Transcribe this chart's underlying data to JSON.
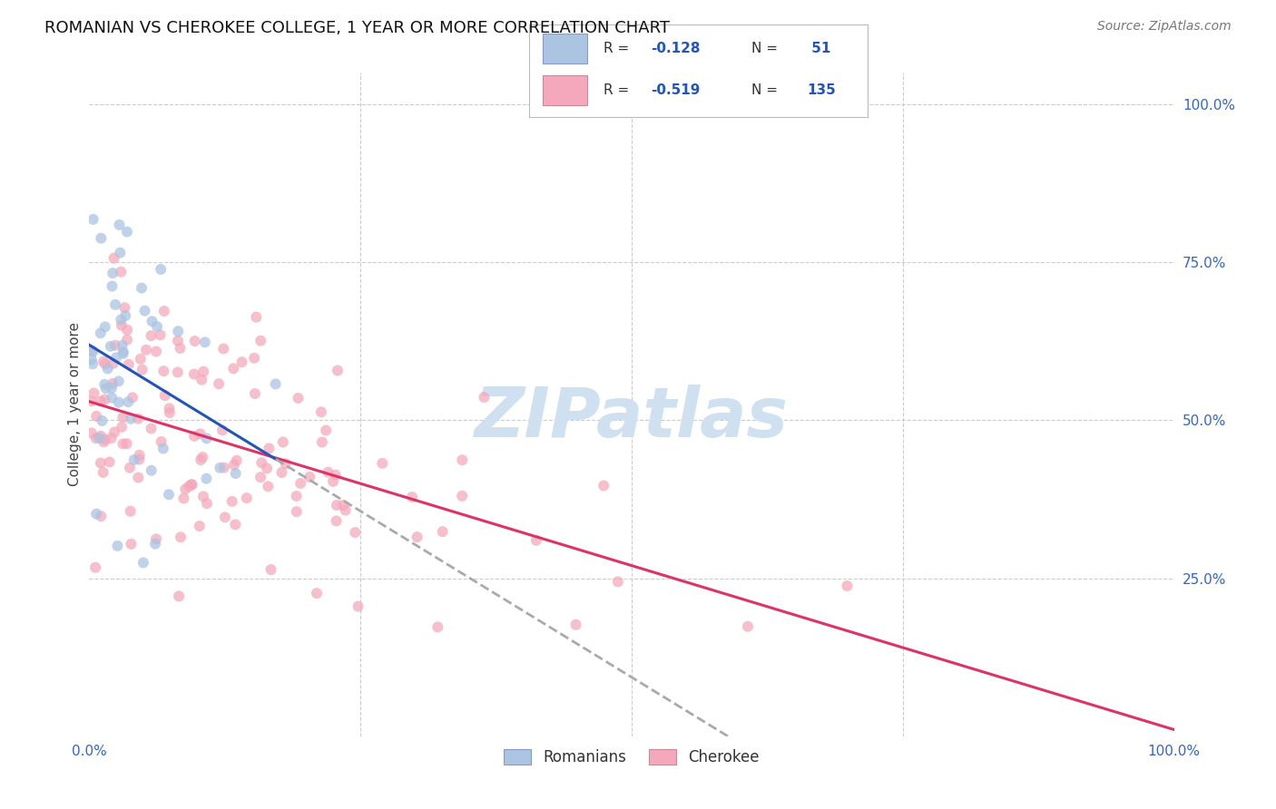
{
  "title": "ROMANIAN VS CHEROKEE COLLEGE, 1 YEAR OR MORE CORRELATION CHART",
  "source": "Source: ZipAtlas.com",
  "ylabel": "College, 1 year or more",
  "xlim": [
    0.0,
    1.0
  ],
  "ylim": [
    0.0,
    1.05
  ],
  "xticks": [
    0.0,
    0.25,
    0.5,
    0.75,
    1.0
  ],
  "xticklabels": [
    "0.0%",
    "",
    "",
    "",
    "100.0%"
  ],
  "ytick_labels_right": [
    "100.0%",
    "75.0%",
    "50.0%",
    "25.0%"
  ],
  "ytick_positions_right": [
    1.0,
    0.75,
    0.5,
    0.25
  ],
  "romanian_R": -0.128,
  "romanian_N": 51,
  "cherokee_R": -0.519,
  "cherokee_N": 135,
  "romanian_color": "#aac4e2",
  "cherokee_color": "#f5a8bb",
  "romanian_line_color": "#2255bb",
  "cherokee_line_color": "#dd3366",
  "romanian_line_dashed_color": "#aaaaaa",
  "watermark_color": "#cfe0f0",
  "watermark_fontsize": 55,
  "title_fontsize": 13,
  "source_fontsize": 10,
  "axis_label_fontsize": 11,
  "grid_color": "#cccccc",
  "background_color": "#ffffff",
  "legend_box_color": "#f0f0f0",
  "legend_text_color": "#333333",
  "legend_num_color": "#2255bb",
  "tick_label_color": "#3366cc"
}
